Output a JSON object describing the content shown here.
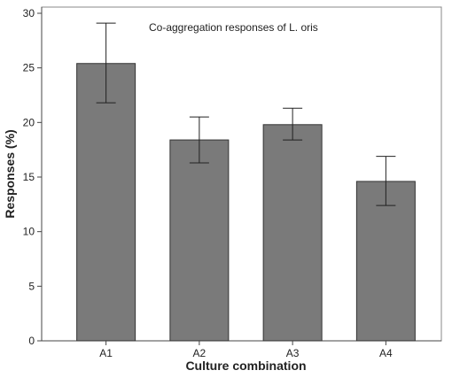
{
  "chart_data": {
    "type": "bar",
    "title": "Co-aggregation responses of L. oris",
    "xlabel": "Culture combination",
    "ylabel": "Responses (%)",
    "categories": [
      "A1",
      "A2",
      "A3",
      "A4"
    ],
    "values": [
      25.4,
      18.4,
      19.8,
      14.6
    ],
    "error_low": [
      21.8,
      16.3,
      18.4,
      12.4
    ],
    "error_high": [
      29.1,
      20.5,
      21.3,
      16.9
    ],
    "ylim": [
      0,
      30
    ],
    "yticks": [
      0,
      5,
      10,
      15,
      20,
      25,
      30
    ],
    "grid": false,
    "colors": {
      "bar_fill": "#7a7a7a",
      "bar_stroke": "#333333",
      "axis": "#444444",
      "frame": "#888888"
    }
  }
}
